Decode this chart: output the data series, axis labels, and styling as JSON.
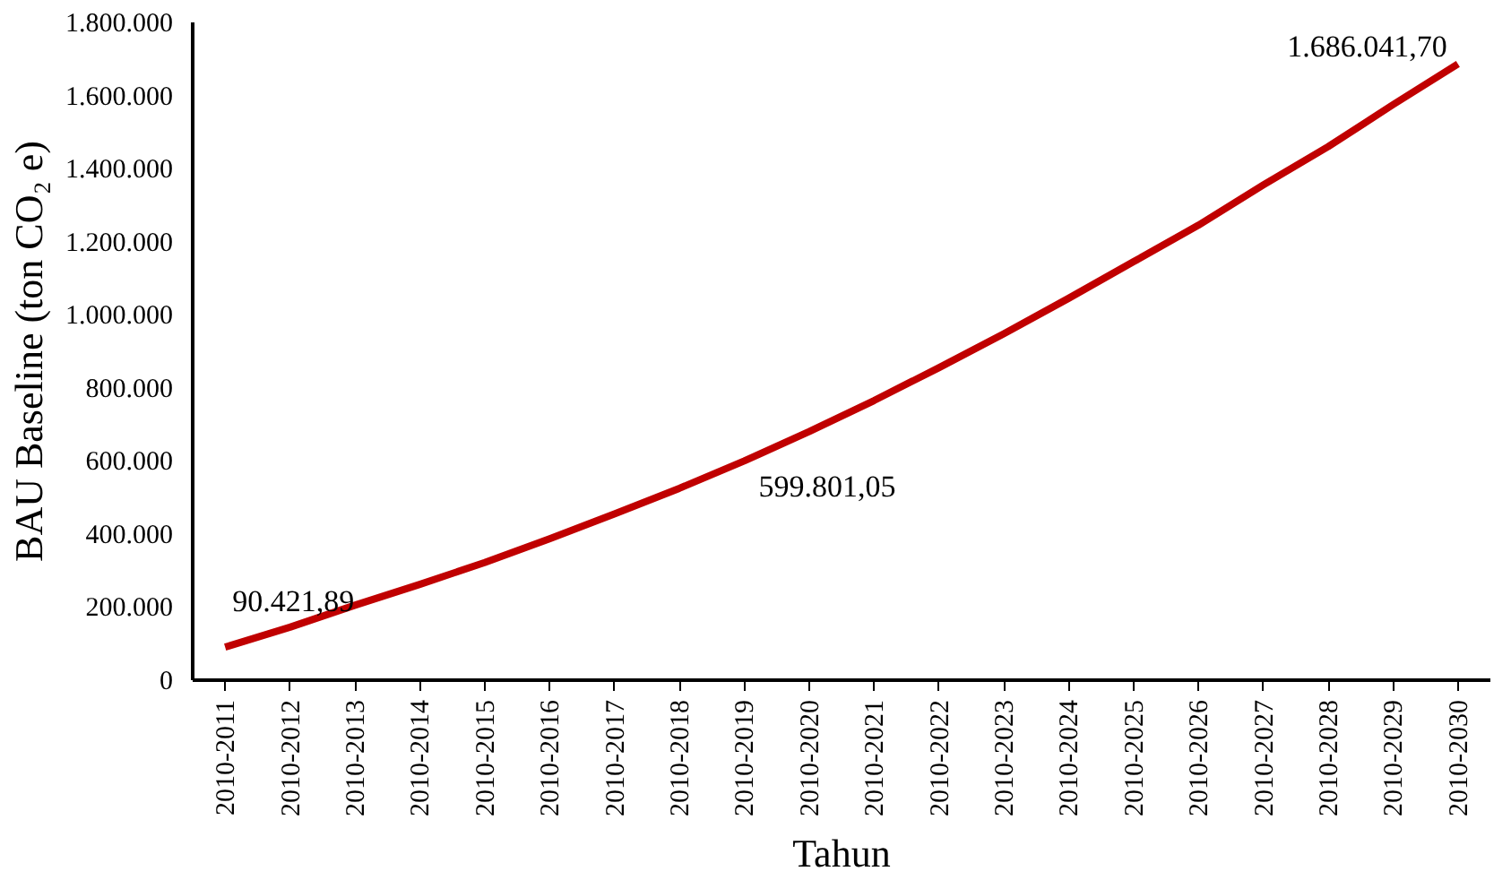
{
  "chart_data": {
    "type": "line",
    "xlabel": "Tahun",
    "ylabel": "BAU Baseline (ton CO₂ e)",
    "categories": [
      "2010-2011",
      "2010-2012",
      "2010-2013",
      "2010-2014",
      "2010-2015",
      "2010-2016",
      "2010-2017",
      "2010-2018",
      "2010-2019",
      "2010-2020",
      "2010-2021",
      "2010-2022",
      "2010-2023",
      "2010-2024",
      "2010-2025",
      "2010-2026",
      "2010-2027",
      "2010-2028",
      "2010-2029",
      "2010-2030"
    ],
    "series": [
      {
        "color": "#c00000",
        "values": [
          90421.89,
          145000,
          205000,
          262000,
          322000,
          387000,
          455000,
          525000,
          599801.05,
          680000,
          765000,
          855000,
          948000,
          1045000,
          1145000,
          1245000,
          1355000,
          1460000,
          1575000,
          1686041.7
        ],
        "value_labels": [
          "90.421,89",
          null,
          null,
          null,
          null,
          null,
          null,
          null,
          "599.801,05",
          null,
          null,
          null,
          null,
          null,
          null,
          null,
          null,
          null,
          null,
          "1.686.041,70"
        ]
      }
    ],
    "ylim": [
      0,
      1800000
    ],
    "yticks": [
      {
        "value": 0,
        "label": "0"
      },
      {
        "value": 200000,
        "label": "200.000"
      },
      {
        "value": 400000,
        "label": "400.000"
      },
      {
        "value": 600000,
        "label": "600.000"
      },
      {
        "value": 800000,
        "label": "800.000"
      },
      {
        "value": 1000000,
        "label": "1.000.000"
      },
      {
        "value": 1200000,
        "label": "1.200.000"
      },
      {
        "value": 1400000,
        "label": "1.400.000"
      },
      {
        "value": 1600000,
        "label": "1.600.000"
      },
      {
        "value": 1800000,
        "label": "1.800.000"
      }
    ],
    "grid": false,
    "marker": "none",
    "line_style": "solid"
  }
}
